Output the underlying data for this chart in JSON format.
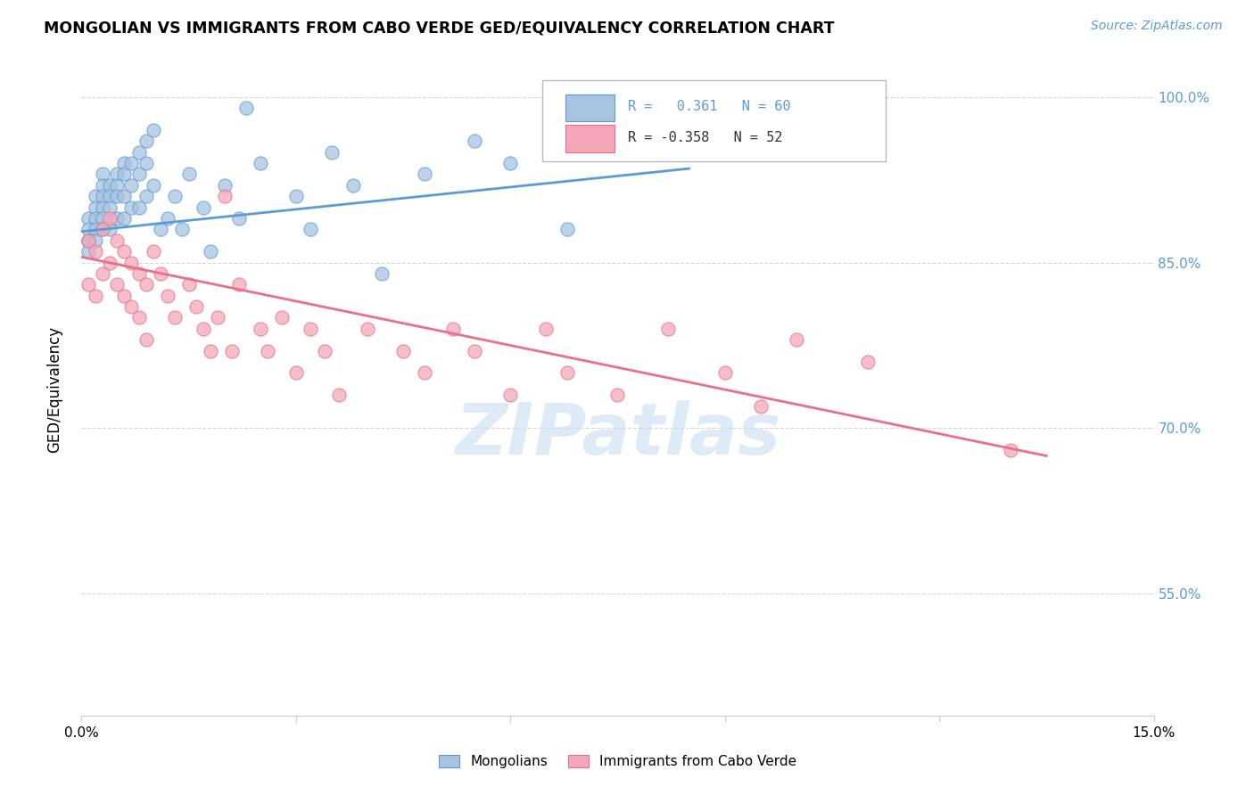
{
  "title": "MONGOLIAN VS IMMIGRANTS FROM CABO VERDE GED/EQUIVALENCY CORRELATION CHART",
  "source": "Source: ZipAtlas.com",
  "ylabel": "GED/Equivalency",
  "xlim": [
    0.0,
    0.15
  ],
  "ylim": [
    0.44,
    1.03
  ],
  "mongolian_color": "#a8c4e0",
  "cabo_verde_color": "#f4a7b9",
  "mongolian_line_color": "#5b9bd5",
  "cabo_verde_line_color": "#e8708a",
  "watermark_color": "#c8dff0",
  "mongolian_x": [
    0.001,
    0.001,
    0.001,
    0.001,
    0.001,
    0.002,
    0.002,
    0.002,
    0.002,
    0.002,
    0.003,
    0.003,
    0.003,
    0.003,
    0.003,
    0.003,
    0.004,
    0.004,
    0.004,
    0.004,
    0.005,
    0.005,
    0.005,
    0.005,
    0.006,
    0.006,
    0.006,
    0.006,
    0.007,
    0.007,
    0.007,
    0.008,
    0.008,
    0.008,
    0.009,
    0.009,
    0.009,
    0.01,
    0.01,
    0.011,
    0.012,
    0.013,
    0.014,
    0.015,
    0.017,
    0.018,
    0.02,
    0.022,
    0.023,
    0.025,
    0.03,
    0.032,
    0.035,
    0.038,
    0.042,
    0.048,
    0.055,
    0.06,
    0.068,
    0.08
  ],
  "mongolian_y": [
    0.89,
    0.88,
    0.87,
    0.87,
    0.86,
    0.91,
    0.9,
    0.89,
    0.88,
    0.87,
    0.93,
    0.92,
    0.91,
    0.9,
    0.89,
    0.88,
    0.92,
    0.91,
    0.9,
    0.88,
    0.93,
    0.92,
    0.91,
    0.89,
    0.94,
    0.93,
    0.91,
    0.89,
    0.94,
    0.92,
    0.9,
    0.95,
    0.93,
    0.9,
    0.96,
    0.94,
    0.91,
    0.97,
    0.92,
    0.88,
    0.89,
    0.91,
    0.88,
    0.93,
    0.9,
    0.86,
    0.92,
    0.89,
    0.99,
    0.94,
    0.91,
    0.88,
    0.95,
    0.92,
    0.84,
    0.93,
    0.96,
    0.94,
    0.88,
    0.99
  ],
  "cabo_verde_x": [
    0.001,
    0.001,
    0.002,
    0.002,
    0.003,
    0.003,
    0.004,
    0.004,
    0.005,
    0.005,
    0.006,
    0.006,
    0.007,
    0.007,
    0.008,
    0.008,
    0.009,
    0.009,
    0.01,
    0.011,
    0.012,
    0.013,
    0.015,
    0.016,
    0.017,
    0.018,
    0.019,
    0.02,
    0.021,
    0.022,
    0.025,
    0.026,
    0.028,
    0.03,
    0.032,
    0.034,
    0.036,
    0.04,
    0.045,
    0.048,
    0.052,
    0.055,
    0.06,
    0.065,
    0.068,
    0.075,
    0.082,
    0.09,
    0.095,
    0.1,
    0.11,
    0.13
  ],
  "cabo_verde_y": [
    0.87,
    0.83,
    0.86,
    0.82,
    0.88,
    0.84,
    0.89,
    0.85,
    0.87,
    0.83,
    0.86,
    0.82,
    0.85,
    0.81,
    0.84,
    0.8,
    0.83,
    0.78,
    0.86,
    0.84,
    0.82,
    0.8,
    0.83,
    0.81,
    0.79,
    0.77,
    0.8,
    0.91,
    0.77,
    0.83,
    0.79,
    0.77,
    0.8,
    0.75,
    0.79,
    0.77,
    0.73,
    0.79,
    0.77,
    0.75,
    0.79,
    0.77,
    0.73,
    0.79,
    0.75,
    0.73,
    0.79,
    0.75,
    0.72,
    0.78,
    0.76,
    0.68
  ],
  "mong_line_x": [
    0.0,
    0.085
  ],
  "mong_line_y": [
    0.878,
    0.935
  ],
  "cabo_line_x": [
    0.0,
    0.135
  ],
  "cabo_line_y": [
    0.855,
    0.675
  ]
}
